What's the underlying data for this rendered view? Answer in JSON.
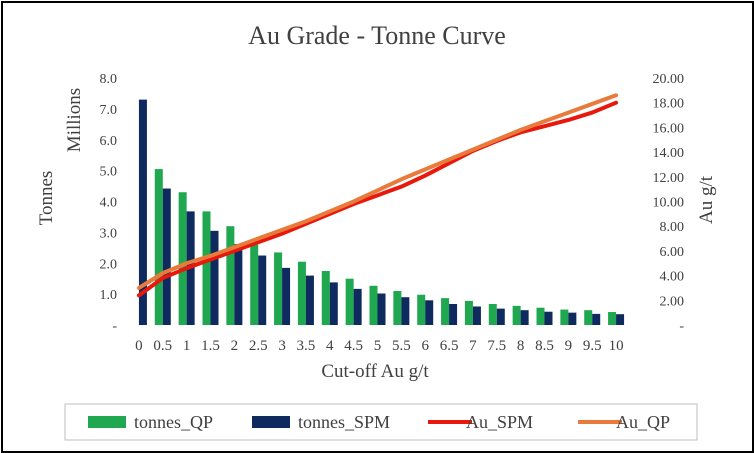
{
  "chart_data": {
    "type": "bar",
    "title": "Au Grade - Tonne Curve",
    "xlabel": "Cut-off Au g/t",
    "ylabel_left": "Tonnes",
    "ylabel_left_units": "Millions",
    "ylabel_right": "Au g/t",
    "categories": [
      "0",
      "0.5",
      "1",
      "1.5",
      "2",
      "2.5",
      "3",
      "3.5",
      "4",
      "4.5",
      "5",
      "5.5",
      "6",
      "6.5",
      "7",
      "7.5",
      "8",
      "8.5",
      "9",
      "9.5",
      "10"
    ],
    "y_left_ticks": [
      "-",
      "1.0",
      "2.0",
      "3.0",
      "4.0",
      "5.0",
      "6.0",
      "7.0",
      "8.0"
    ],
    "y_left_range": [
      0,
      8
    ],
    "y_right_ticks": [
      "-",
      "2.00",
      "4.00",
      "6.00",
      "8.00",
      "10.00",
      "12.00",
      "14.00",
      "16.00",
      "18.00",
      "20.00"
    ],
    "y_right_range": [
      0,
      20
    ],
    "grid": false,
    "legend_position": "bottom",
    "series": [
      {
        "name": "tonnes_QP",
        "kind": "bar",
        "axis": "left",
        "color": "#1fa84f",
        "values": [
          0,
          5.05,
          4.3,
          3.68,
          3.2,
          2.6,
          2.35,
          2.05,
          1.75,
          1.5,
          1.27,
          1.1,
          0.98,
          0.87,
          0.78,
          0.68,
          0.62,
          0.56,
          0.5,
          0.48,
          0.42
        ]
      },
      {
        "name": "tonnes_SPM",
        "kind": "bar",
        "axis": "left",
        "color": "#0e2a5e",
        "values": [
          7.3,
          4.42,
          3.68,
          3.05,
          2.62,
          2.25,
          1.85,
          1.6,
          1.38,
          1.17,
          1.02,
          0.9,
          0.8,
          0.68,
          0.6,
          0.53,
          0.48,
          0.43,
          0.4,
          0.36,
          0.35
        ]
      },
      {
        "name": "Au_SPM",
        "kind": "line",
        "axis": "right",
        "color": "#e8180c",
        "values": [
          2.4,
          3.8,
          4.6,
          5.3,
          6.0,
          6.7,
          7.4,
          8.2,
          9.0,
          9.8,
          10.5,
          11.2,
          12.1,
          13.1,
          14.1,
          14.9,
          15.6,
          16.1,
          16.6,
          17.2,
          18.0
        ]
      },
      {
        "name": "Au_QP",
        "kind": "line",
        "axis": "right",
        "color": "#e87a3c",
        "values": [
          3.0,
          4.2,
          5.0,
          5.6,
          6.3,
          7.0,
          7.7,
          8.4,
          9.2,
          10.0,
          10.9,
          11.8,
          12.6,
          13.4,
          14.2,
          15.0,
          15.8,
          16.5,
          17.2,
          17.9,
          18.6
        ]
      }
    ]
  }
}
